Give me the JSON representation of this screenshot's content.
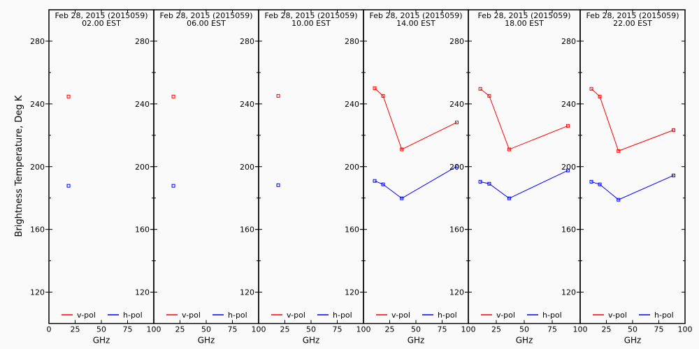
{
  "chart_data": {
    "type": "line",
    "ylabel": "Brightness Temperature, Deg K",
    "xlabel": "GHz",
    "xlim": [
      0,
      100
    ],
    "ylim": [
      100,
      300
    ],
    "xticks": [
      0,
      25,
      50,
      75,
      100
    ],
    "yticks": [
      120,
      160,
      200,
      240,
      280
    ],
    "legend": {
      "placement": "bottom",
      "entries": [
        "v-pol",
        "h-pol"
      ]
    },
    "colors": {
      "v-pol": "#ff0000",
      "h-pol": "#0000ff"
    },
    "panels": [
      {
        "title": "Feb 28, 2015 (2015059)",
        "subtitle": "02.00 EST",
        "series": [
          {
            "name": "v-pol",
            "x": [
              18.7
            ],
            "y": [
              244.7
            ]
          },
          {
            "name": "h-pol",
            "x": [
              18.7
            ],
            "y": [
              187.8
            ]
          }
        ]
      },
      {
        "title": "Feb 28, 2015 (2015059)",
        "subtitle": "06.00 EST",
        "series": [
          {
            "name": "v-pol",
            "x": [
              18.7
            ],
            "y": [
              244.7
            ]
          },
          {
            "name": "h-pol",
            "x": [
              18.7
            ],
            "y": [
              187.8
            ]
          }
        ]
      },
      {
        "title": "Feb 28, 2015 (2015059)",
        "subtitle": "10.00 EST",
        "series": [
          {
            "name": "v-pol",
            "x": [
              18.7
            ],
            "y": [
              245.1
            ]
          },
          {
            "name": "h-pol",
            "x": [
              18.7
            ],
            "y": [
              188.2
            ]
          }
        ]
      },
      {
        "title": "Feb 28, 2015 (2015059)",
        "subtitle": "14.00 EST",
        "series": [
          {
            "name": "v-pol",
            "x": [
              10.7,
              18.7,
              36.5,
              89
            ],
            "y": [
              250.0,
              245.1,
              211.0,
              228.2
            ]
          },
          {
            "name": "h-pol",
            "x": [
              10.7,
              18.7,
              36.5,
              89
            ],
            "y": [
              190.9,
              188.7,
              179.8,
              200.2
            ]
          }
        ]
      },
      {
        "title": "Feb 28, 2015 (2015059)",
        "subtitle": "18.00 EST",
        "series": [
          {
            "name": "v-pol",
            "x": [
              10.7,
              18.7,
              36.5,
              89
            ],
            "y": [
              249.6,
              245.1,
              211.0,
              226.0
            ]
          },
          {
            "name": "h-pol",
            "x": [
              10.7,
              18.7,
              36.5,
              89
            ],
            "y": [
              190.4,
              189.1,
              179.8,
              197.6
            ]
          }
        ]
      },
      {
        "title": "Feb 28, 2015 (2015059)",
        "subtitle": "22.00 EST",
        "series": [
          {
            "name": "v-pol",
            "x": [
              10.7,
              18.7,
              36.5,
              89
            ],
            "y": [
              249.6,
              244.7,
              210.0,
              223.3
            ]
          },
          {
            "name": "h-pol",
            "x": [
              10.7,
              18.7,
              36.5,
              89
            ],
            "y": [
              190.4,
              188.7,
              178.9,
              194.4
            ]
          }
        ]
      }
    ]
  }
}
